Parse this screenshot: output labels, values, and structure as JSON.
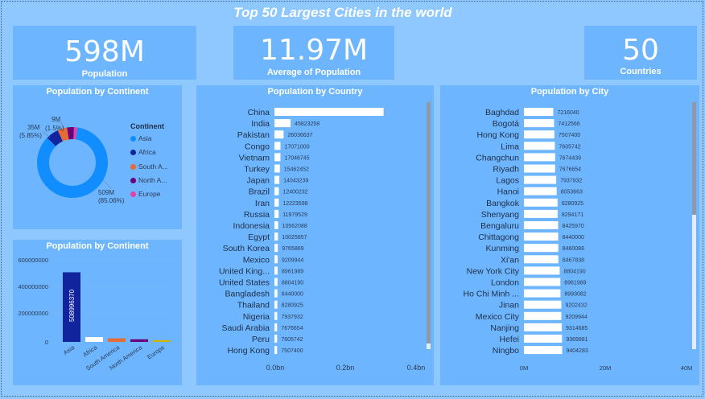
{
  "title": "Top 50 Largest Cities in the world",
  "kpis": [
    {
      "value": "598M",
      "label": "Population"
    },
    {
      "value": "11.97M",
      "label": "Average of Population"
    },
    {
      "value": "50",
      "label": "Countries"
    }
  ],
  "donut": {
    "title": "Population by Continent",
    "legend_title": "Continent",
    "labels": [
      {
        "value": "509M",
        "pct": "(85.06%)"
      },
      {
        "value": "35M",
        "pct": "(5.85%)"
      },
      {
        "value": "9M",
        "pct": "(1.5%)"
      }
    ],
    "legend": [
      "Asia",
      "Africa",
      "South A...",
      "North A...",
      "Europe"
    ]
  },
  "column_chart": {
    "title": "Population by Continent",
    "data_label": "508996370",
    "y_ticks": [
      "600000000",
      "400000000",
      "200000000",
      "0"
    ]
  },
  "country_chart": {
    "title": "Population by Country",
    "x_ticks": [
      "0.0bn",
      "0.2bn",
      "0.4bn"
    ]
  },
  "city_chart": {
    "title": "Population by City",
    "x_ticks": [
      "0M",
      "20M",
      "40M"
    ]
  },
  "colors": {
    "asia": "#118dff",
    "africa": "#12239e",
    "south_america": "#e66c37",
    "north_america": "#6b007b",
    "europe": "#e044a7",
    "oceania": "#d9b300",
    "bar": "#ffffff",
    "panel": "#6db6ff",
    "background": "#8ec8ff"
  },
  "chart_data": [
    {
      "type": "pie",
      "title": "Population by Continent",
      "categories": [
        "Asia",
        "Africa",
        "South America",
        "North America",
        "Europe"
      ],
      "values": [
        509,
        35,
        26,
        19,
        9
      ],
      "unit": "M"
    },
    {
      "type": "bar",
      "title": "Population by Continent",
      "categories": [
        "Asia",
        "Africa",
        "South America",
        "North America",
        "Europe"
      ],
      "values": [
        508996370,
        35000000,
        26000000,
        19000000,
        9000000
      ],
      "ylim": [
        0,
        600000000
      ]
    },
    {
      "type": "bar",
      "orientation": "horizontal",
      "title": "Population by Country",
      "categories": [
        "China",
        "India",
        "Pakistan",
        "Congo",
        "Vietnam",
        "Turkey",
        "Japan",
        "Brazil",
        "Iran",
        "Russia",
        "Indonesia",
        "Egypt",
        "South Korea",
        "Mexico",
        "United King...",
        "United States",
        "Bangladesh",
        "Thailand",
        "Nigeria",
        "Saudi Arabia",
        "Peru",
        "Hong Kong"
      ],
      "values": [
        310000000,
        45823258,
        26036637,
        17071000,
        17046745,
        15462452,
        14043239,
        12400232,
        12223598,
        11979529,
        10562088,
        10025657,
        9765869,
        9209944,
        8961989,
        8804190,
        8440000,
        8280925,
        7937932,
        7676654,
        7605742,
        7507400
      ],
      "data_labels": [
        "",
        "45823258",
        "26036637",
        "17071000",
        "17046745",
        "15462452",
        "14043239",
        "12400232",
        "12223598",
        "11979529",
        "10562088",
        "10025657",
        "9765869",
        "9209944",
        "8961989",
        "8804190",
        "8440000",
        "8280925",
        "7937932",
        "7676654",
        "7605742",
        "7507400"
      ],
      "xlim": [
        0,
        400000000
      ]
    },
    {
      "type": "bar",
      "orientation": "horizontal",
      "title": "Population by City",
      "categories": [
        "Baghdad",
        "Bogotá",
        "Hong Kong",
        "Lima",
        "Changchun",
        "Riyadh",
        "Lagos",
        "Hanoi",
        "Bangkok",
        "Shenyang",
        "Bengaluru",
        "Chittagong",
        "Kunming",
        "Xi'an",
        "New York City",
        "London",
        "Ho Chi Minh ...",
        "Jinan",
        "Mexico City",
        "Nanjing",
        "Hefei",
        "Ningbo"
      ],
      "values": [
        7216040,
        7412566,
        7507400,
        7605742,
        7674439,
        7676654,
        7937932,
        8053663,
        8280925,
        8294171,
        8425970,
        8440000,
        8460088,
        8467838,
        8804190,
        8961989,
        8993082,
        9202432,
        9209944,
        9314685,
        9369881,
        9404283
      ],
      "data_labels": [
        "7216040",
        "7412566",
        "7507400",
        "7605742",
        "7674439",
        "7676654",
        "7937932",
        "8053663",
        "8280925",
        "8294171",
        "8425970",
        "8440000",
        "8460088",
        "8467838",
        "8804190",
        "8961989",
        "8993082",
        "9202432",
        "9209944",
        "9314685",
        "9369881",
        "9404283"
      ],
      "xlim": [
        0,
        40000000
      ]
    }
  ]
}
